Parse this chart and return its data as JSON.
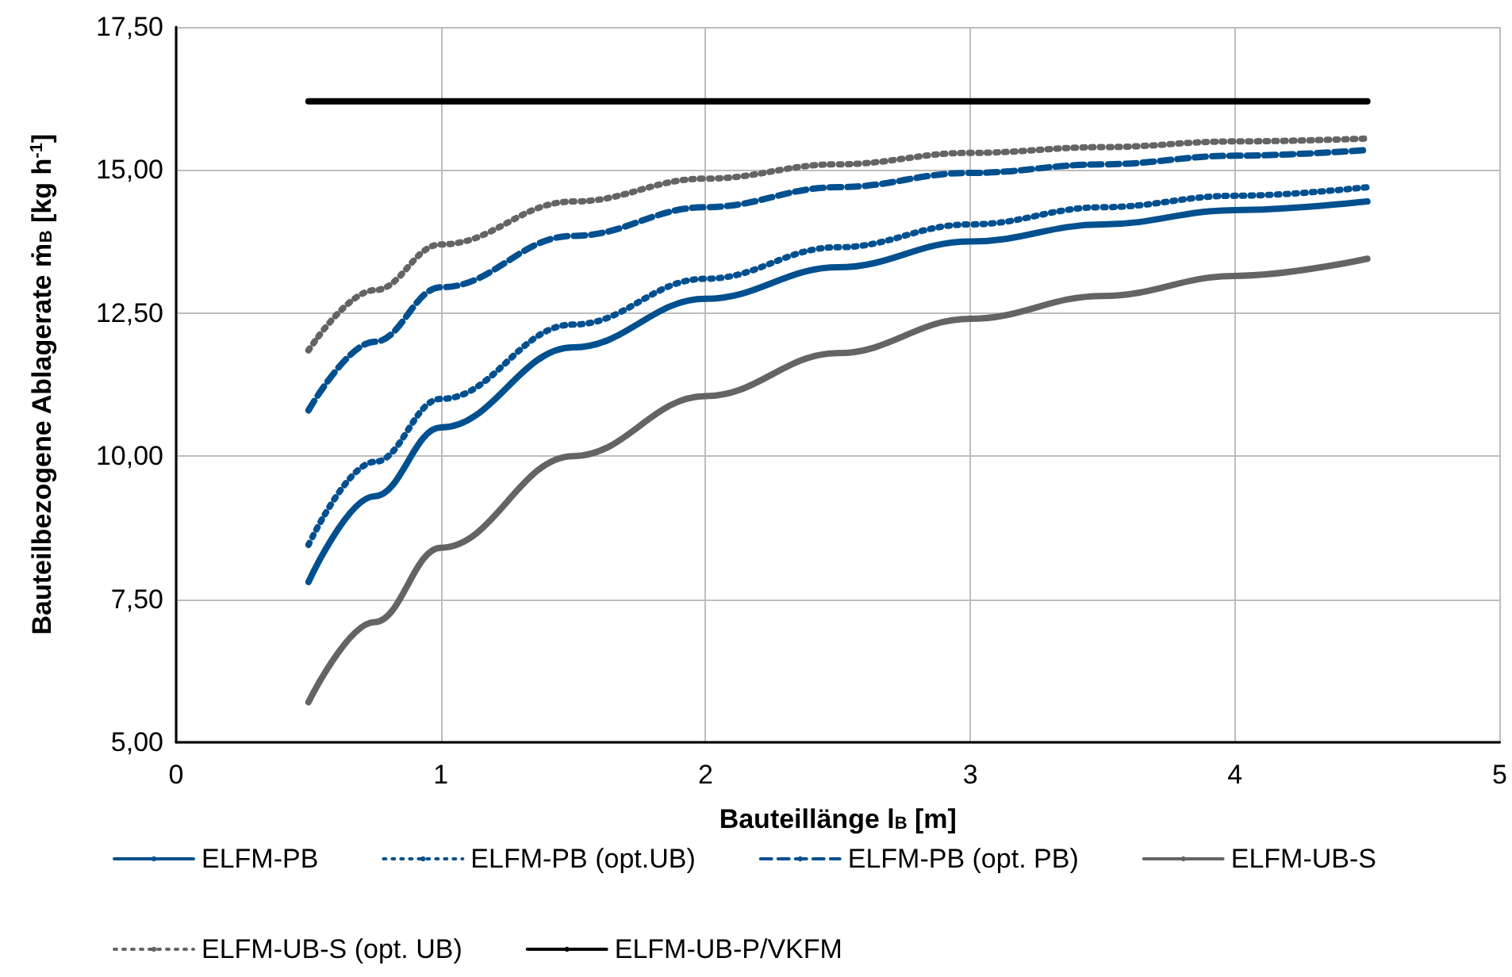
{
  "chart_data": {
    "type": "line",
    "xlabel": "Bauteillänge l$_{B}$ [m]",
    "ylabel": "Bauteilbezogene Ablagerate ṁ$_{B}$ [kg h$^{-1}$]",
    "x": [
      0.5,
      0.75,
      1,
      1.5,
      2,
      2.5,
      3,
      3.5,
      4,
      4.5
    ],
    "series": [
      {
        "name": "ELFM-PB",
        "color": "#00508f",
        "line_style": "solid",
        "values": [
          7.8,
          9.3,
          10.5,
          11.9,
          12.75,
          13.3,
          13.75,
          14.05,
          14.3,
          14.45
        ]
      },
      {
        "name": "ELFM-PB (opt.UB)",
        "color": "#00508f",
        "line_style": "dotted",
        "values": [
          8.45,
          9.9,
          11.0,
          12.3,
          13.1,
          13.65,
          14.05,
          14.35,
          14.55,
          14.7
        ]
      },
      {
        "name": "ELFM-PB (opt. PB)",
        "color": "#00508f",
        "line_style": "dashed",
        "values": [
          10.8,
          12.0,
          12.95,
          13.85,
          14.35,
          14.7,
          14.95,
          15.1,
          15.25,
          15.35
        ]
      },
      {
        "name": "ELFM-UB-S",
        "color": "#646464",
        "line_style": "solid",
        "values": [
          5.7,
          7.1,
          8.4,
          10.0,
          11.05,
          11.8,
          12.4,
          12.8,
          13.15,
          13.45
        ]
      },
      {
        "name": "ELFM-UB-S (opt. UB)",
        "color": "#646464",
        "line_style": "dotted",
        "values": [
          11.85,
          12.9,
          13.7,
          14.45,
          14.85,
          15.1,
          15.3,
          15.4,
          15.5,
          15.55
        ]
      },
      {
        "name": "ELFM-UB-P/VKFM",
        "color": "#000000",
        "line_style": "solid",
        "values": [
          16.2,
          16.2,
          16.2,
          16.2,
          16.2,
          16.2,
          16.2,
          16.2,
          16.2,
          16.2
        ]
      }
    ],
    "xlim": [
      0,
      5
    ],
    "xticks": [
      0,
      1,
      2,
      3,
      4,
      5
    ],
    "ylim": [
      5,
      17.5
    ],
    "yticks": [
      {
        "value": 5,
        "label": "5,00"
      },
      {
        "value": 7.5,
        "label": "7,50"
      },
      {
        "value": 10,
        "label": "10,00"
      },
      {
        "value": 12.5,
        "label": "12,50"
      },
      {
        "value": 15,
        "label": "15,00"
      },
      {
        "value": 17.5,
        "label": "17,50"
      }
    ],
    "grid": true,
    "legend": "bottom",
    "marker": "none"
  }
}
